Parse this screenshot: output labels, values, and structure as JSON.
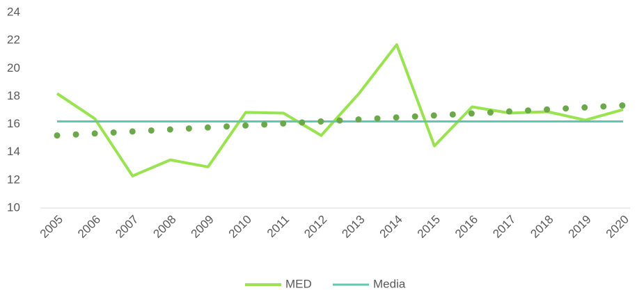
{
  "chart_data": {
    "type": "line",
    "categories": [
      "2005",
      "2006",
      "2007",
      "2008",
      "2009",
      "2010",
      "2011",
      "2012",
      "2013",
      "2014",
      "2015",
      "2016",
      "2017",
      "2018",
      "2019",
      "2020"
    ],
    "series": [
      {
        "name": "MED",
        "color": "#98e34f",
        "values": [
          18.2,
          16.4,
          12.3,
          13.45,
          12.95,
          16.85,
          16.8,
          15.2,
          18.2,
          21.7,
          14.45,
          17.25,
          16.8,
          16.9,
          16.3,
          17.05
        ]
      },
      {
        "name": "Media",
        "color": "#5ccab0",
        "values": [
          16.2,
          16.2,
          16.2,
          16.2,
          16.2,
          16.2,
          16.2,
          16.2,
          16.2,
          16.2,
          16.2,
          16.2,
          16.2,
          16.2,
          16.2,
          16.2
        ]
      }
    ],
    "trendline": {
      "color": "#6aa84a",
      "values": [
        15.2,
        17.35
      ]
    },
    "ylim": [
      10,
      24
    ],
    "yticks": [
      10,
      12,
      14,
      16,
      18,
      20,
      22,
      24
    ],
    "legend": "bottom"
  }
}
